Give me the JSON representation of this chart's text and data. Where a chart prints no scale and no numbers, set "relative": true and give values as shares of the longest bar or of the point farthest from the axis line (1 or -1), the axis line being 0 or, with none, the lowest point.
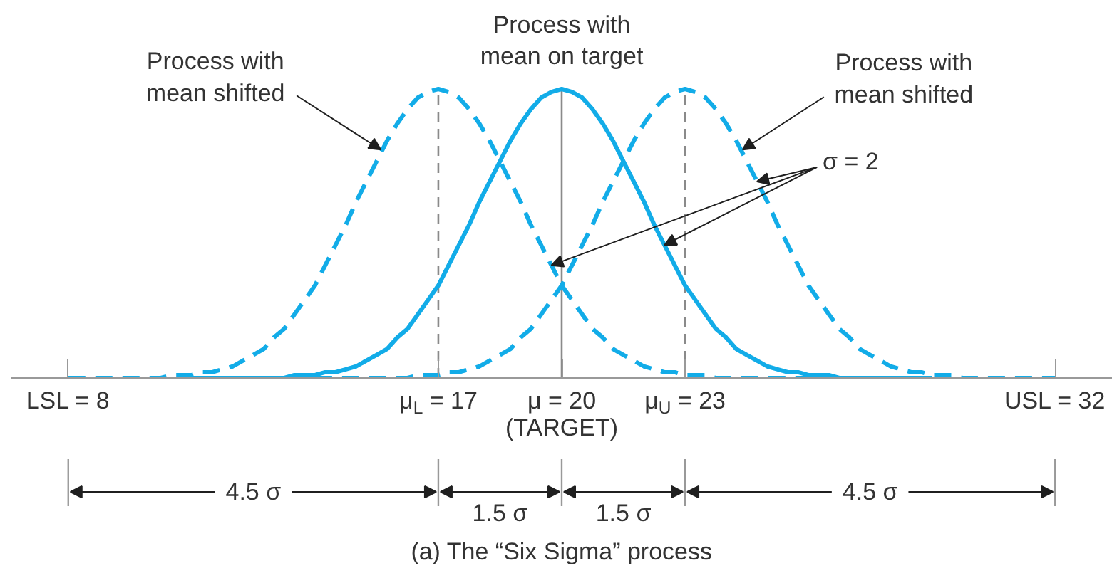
{
  "chart_data": {
    "type": "line",
    "title": "(a) The “Six Sigma” process",
    "relative": true,
    "xlim": [
      6.6,
      33.4
    ],
    "xticks": [
      {
        "value": 8,
        "label": "LSL = 8"
      },
      {
        "value": 17,
        "label": "μ$_{L}$ = 17"
      },
      {
        "value": 20,
        "label": "μ = 20\n(TARGET)"
      },
      {
        "value": 23,
        "label": "μ$_{U}$ = 23"
      },
      {
        "value": 32,
        "label": "USL = 32"
      }
    ],
    "series": [
      {
        "color": "#12ace8",
        "line_style": "dashed",
        "x": [
          8,
          8.25,
          8.5,
          8.75,
          9,
          9.25,
          9.5,
          9.75,
          10,
          10.25,
          10.5,
          10.75,
          11,
          11.25,
          11.5,
          11.75,
          12,
          12.25,
          12.5,
          12.75,
          13,
          13.25,
          13.5,
          13.75,
          14,
          14.25,
          14.5,
          14.75,
          15,
          15.25,
          15.5,
          15.75,
          16,
          16.25,
          16.5,
          16.75,
          17,
          17.25,
          17.5,
          17.75,
          18,
          18.25,
          18.5,
          18.75,
          19,
          19.25,
          19.5,
          19.75,
          20,
          20.25,
          20.5,
          20.75,
          21,
          21.25,
          21.5,
          21.75,
          22,
          22.25,
          22.5,
          22.75,
          23,
          23.25,
          23.5,
          23.75,
          24,
          24.25,
          24.5,
          24.75,
          25,
          25.25,
          25.5,
          25.75,
          26
        ],
        "values": [
          0,
          0,
          0,
          0,
          0,
          0,
          0,
          0,
          0,
          0,
          0.01,
          0.01,
          0.01,
          0.02,
          0.02,
          0.03,
          0.04,
          0.06,
          0.08,
          0.1,
          0.14,
          0.17,
          0.22,
          0.27,
          0.32,
          0.39,
          0.46,
          0.53,
          0.61,
          0.68,
          0.75,
          0.82,
          0.88,
          0.93,
          0.97,
          0.99,
          1,
          0.99,
          0.97,
          0.93,
          0.88,
          0.82,
          0.75,
          0.68,
          0.61,
          0.53,
          0.46,
          0.39,
          0.32,
          0.27,
          0.22,
          0.17,
          0.14,
          0.1,
          0.08,
          0.06,
          0.04,
          0.03,
          0.02,
          0.02,
          0.01,
          0.01,
          0.01,
          0,
          0,
          0,
          0,
          0,
          0,
          0,
          0,
          0,
          0
        ]
      },
      {
        "color": "#12ace8",
        "line_style": "solid",
        "x": [
          11,
          11.25,
          11.5,
          11.75,
          12,
          12.25,
          12.5,
          12.75,
          13,
          13.25,
          13.5,
          13.75,
          14,
          14.25,
          14.5,
          14.75,
          15,
          15.25,
          15.5,
          15.75,
          16,
          16.25,
          16.5,
          16.75,
          17,
          17.25,
          17.5,
          17.75,
          18,
          18.25,
          18.5,
          18.75,
          19,
          19.25,
          19.5,
          19.75,
          20,
          20.25,
          20.5,
          20.75,
          21,
          21.25,
          21.5,
          21.75,
          22,
          22.25,
          22.5,
          22.75,
          23,
          23.25,
          23.5,
          23.75,
          24,
          24.25,
          24.5,
          24.75,
          25,
          25.25,
          25.5,
          25.75,
          26,
          26.25,
          26.5,
          26.75,
          27,
          27.25,
          27.5,
          27.75,
          28,
          28.25,
          28.5,
          28.75,
          29
        ],
        "values": [
          0,
          0,
          0,
          0,
          0,
          0,
          0,
          0,
          0,
          0,
          0.01,
          0.01,
          0.01,
          0.02,
          0.02,
          0.03,
          0.04,
          0.06,
          0.08,
          0.1,
          0.14,
          0.17,
          0.22,
          0.27,
          0.32,
          0.39,
          0.46,
          0.53,
          0.61,
          0.68,
          0.75,
          0.82,
          0.88,
          0.93,
          0.97,
          0.99,
          1,
          0.99,
          0.97,
          0.93,
          0.88,
          0.82,
          0.75,
          0.68,
          0.61,
          0.53,
          0.46,
          0.39,
          0.32,
          0.27,
          0.22,
          0.17,
          0.14,
          0.1,
          0.08,
          0.06,
          0.04,
          0.03,
          0.02,
          0.02,
          0.01,
          0.01,
          0.01,
          0,
          0,
          0,
          0,
          0,
          0,
          0,
          0,
          0,
          0
        ]
      },
      {
        "color": "#12ace8",
        "line_style": "dashed",
        "x": [
          14,
          14.25,
          14.5,
          14.75,
          15,
          15.25,
          15.5,
          15.75,
          16,
          16.25,
          16.5,
          16.75,
          17,
          17.25,
          17.5,
          17.75,
          18,
          18.25,
          18.5,
          18.75,
          19,
          19.25,
          19.5,
          19.75,
          20,
          20.25,
          20.5,
          20.75,
          21,
          21.25,
          21.5,
          21.75,
          22,
          22.25,
          22.5,
          22.75,
          23,
          23.25,
          23.5,
          23.75,
          24,
          24.25,
          24.5,
          24.75,
          25,
          25.25,
          25.5,
          25.75,
          26,
          26.25,
          26.5,
          26.75,
          27,
          27.25,
          27.5,
          27.75,
          28,
          28.25,
          28.5,
          28.75,
          29,
          29.25,
          29.5,
          29.75,
          30,
          30.25,
          30.5,
          30.75,
          31,
          31.25,
          31.5,
          31.75,
          32
        ],
        "values": [
          0,
          0,
          0,
          0,
          0,
          0,
          0,
          0,
          0,
          0,
          0.01,
          0.01,
          0.01,
          0.02,
          0.02,
          0.03,
          0.04,
          0.06,
          0.08,
          0.1,
          0.14,
          0.17,
          0.22,
          0.27,
          0.32,
          0.39,
          0.46,
          0.53,
          0.61,
          0.68,
          0.75,
          0.82,
          0.88,
          0.93,
          0.97,
          0.99,
          1,
          0.99,
          0.97,
          0.93,
          0.88,
          0.82,
          0.75,
          0.68,
          0.61,
          0.53,
          0.46,
          0.39,
          0.32,
          0.27,
          0.22,
          0.17,
          0.14,
          0.1,
          0.08,
          0.06,
          0.04,
          0.03,
          0.02,
          0.02,
          0.01,
          0.01,
          0.01,
          0,
          0,
          0,
          0,
          0,
          0,
          0,
          0,
          0,
          0
        ]
      }
    ],
    "ref_lines": [
      {
        "axis": "x",
        "value": 17,
        "color": "#8a8a8a",
        "line_style": "dashed"
      },
      {
        "axis": "x",
        "value": 20,
        "color": "#8a8a8a",
        "line_style": "solid"
      },
      {
        "axis": "x",
        "value": 23,
        "color": "#8a8a8a",
        "line_style": "dashed"
      }
    ],
    "annotations": [
      {
        "text": "Process with\nmean shifted",
        "x": 15.6,
        "y": 0.79
      },
      {
        "text": "Process with\nmean on target",
        "x": 20,
        "y": 1
      },
      {
        "text": "Process with\nmean shifted",
        "x": 24.4,
        "y": 0.79
      },
      "σ = 2",
      "4.5 σ",
      "1.5 σ",
      "1.5 σ",
      "4.5 σ"
    ]
  }
}
